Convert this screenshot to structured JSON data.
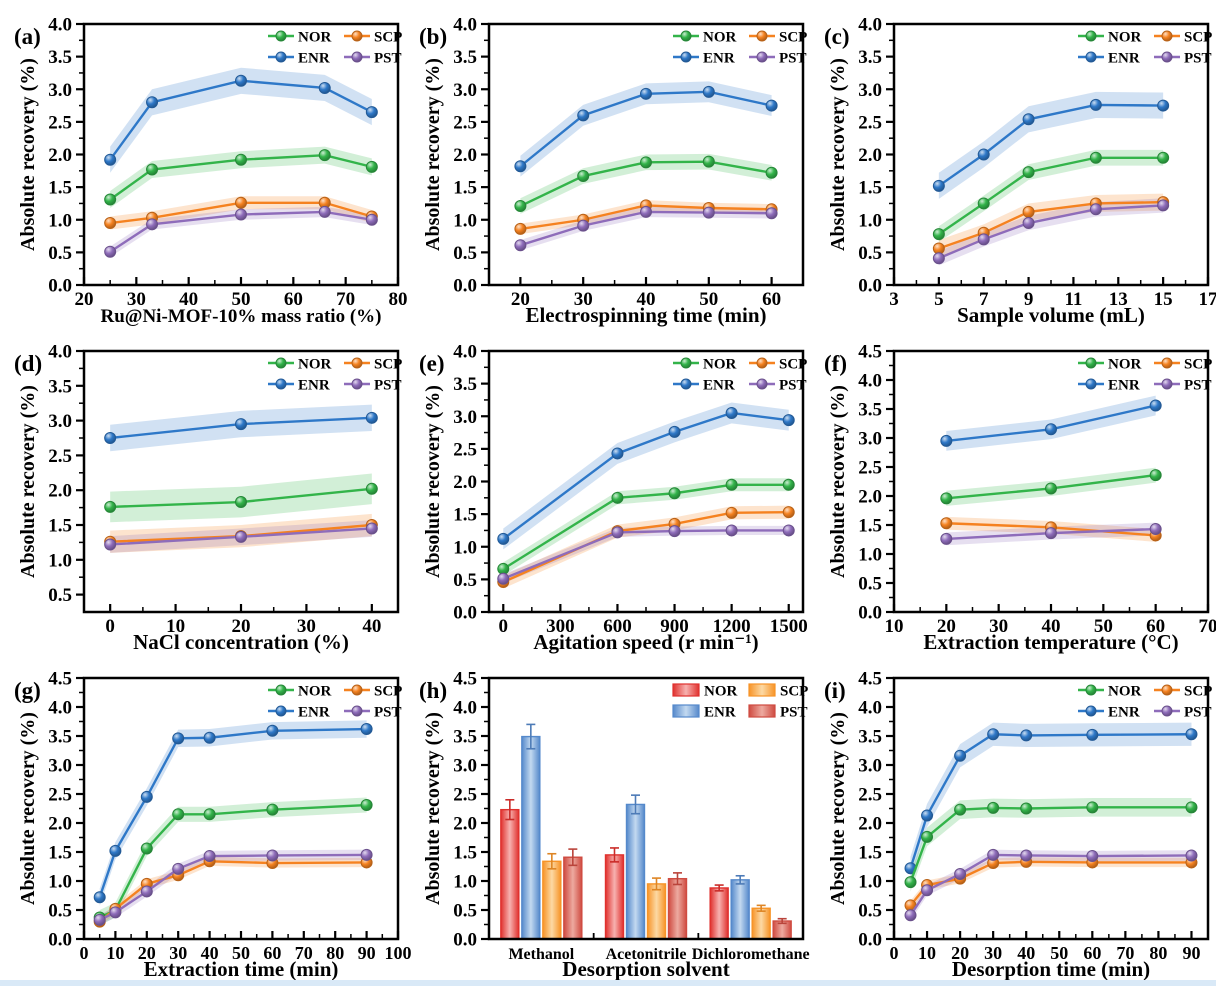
{
  "page": {
    "background": "#ffffff",
    "footer_strip_color": "#d9e9f7"
  },
  "figure": {
    "ylabel": "Absolute recovery (%)",
    "legend_rows": [
      [
        "NOR",
        "SCP"
      ],
      [
        "ENR",
        "PST"
      ]
    ],
    "bar_series_order": [
      "NOR",
      "ENR",
      "SCP",
      "PST"
    ],
    "line_colors": {
      "NOR": "#33b44a",
      "SCP": "#f58220",
      "ENR": "#2e78c8",
      "PST": "#8e6cba"
    },
    "bar_colors": {
      "NOR": {
        "edge": "#e0312e",
        "light": "#f7b2b0"
      },
      "ENR": {
        "edge": "#5589cb",
        "light": "#c3d9f0"
      },
      "SCP": {
        "edge": "#f79428",
        "light": "#fcd9a4"
      },
      "PST": {
        "edge": "#cf4b41",
        "light": "#edaaa0"
      }
    }
  },
  "chart_data": [
    {
      "id": "a",
      "tag": "(a)",
      "type": "line",
      "title": "",
      "xlabel": "Ru@Ni-MOF-10%  mass ratio  (%)",
      "ylabel": "Absolute recovery (%)",
      "xlim": [
        20,
        80
      ],
      "xticks": [
        20,
        30,
        40,
        50,
        60,
        70,
        80
      ],
      "xminors": [
        25,
        35,
        45,
        55,
        65,
        75
      ],
      "ylim": [
        0,
        4
      ],
      "ytick_step": 0.5,
      "xlabel_fs": 19,
      "x": [
        25,
        33,
        50,
        66,
        75
      ],
      "series": [
        {
          "name": "ENR",
          "values": [
            1.92,
            2.8,
            3.13,
            3.02,
            2.65
          ],
          "band": 0.2
        },
        {
          "name": "NOR",
          "values": [
            1.31,
            1.77,
            1.92,
            1.99,
            1.81
          ],
          "band": 0.13
        },
        {
          "name": "SCP",
          "values": [
            0.95,
            1.03,
            1.26,
            1.26,
            1.05
          ],
          "band": 0.1
        },
        {
          "name": "PST",
          "values": [
            0.51,
            0.93,
            1.08,
            1.12,
            1.0
          ],
          "band": 0.08
        }
      ]
    },
    {
      "id": "b",
      "tag": "(b)",
      "type": "line",
      "title": "",
      "xlabel": "Electrospinning time  (min)",
      "ylabel": "Absolute recovery (%)",
      "xlim": [
        15,
        65
      ],
      "xticks": [
        20,
        30,
        40,
        50,
        60
      ],
      "xminors": [
        25,
        35,
        45,
        55
      ],
      "ylim": [
        0,
        4
      ],
      "ytick_step": 0.5,
      "x": [
        20,
        30,
        40,
        50,
        60
      ],
      "series": [
        {
          "name": "ENR",
          "values": [
            1.82,
            2.6,
            2.93,
            2.96,
            2.75
          ],
          "band": 0.16
        },
        {
          "name": "NOR",
          "values": [
            1.21,
            1.67,
            1.88,
            1.89,
            1.72
          ],
          "band": 0.12
        },
        {
          "name": "SCP",
          "values": [
            0.86,
            1.0,
            1.22,
            1.18,
            1.16
          ],
          "band": 0.08
        },
        {
          "name": "PST",
          "values": [
            0.61,
            0.91,
            1.12,
            1.11,
            1.1
          ],
          "band": 0.08
        }
      ]
    },
    {
      "id": "c",
      "tag": "(c)",
      "type": "line",
      "title": "",
      "xlabel": "Sample volume  (mL)",
      "ylabel": "Absolute recovery (%)",
      "xlim": [
        3,
        17
      ],
      "xticks": [
        3,
        5,
        7,
        9,
        11,
        13,
        15,
        17
      ],
      "xminors": [
        4,
        6,
        8,
        10,
        12,
        14,
        16
      ],
      "ylim": [
        0,
        4
      ],
      "ytick_step": 0.5,
      "x": [
        5,
        7,
        9,
        12,
        15
      ],
      "series": [
        {
          "name": "ENR",
          "values": [
            1.52,
            2.0,
            2.54,
            2.76,
            2.75
          ],
          "band": 0.2
        },
        {
          "name": "NOR",
          "values": [
            0.78,
            1.25,
            1.73,
            1.95,
            1.95
          ],
          "band": 0.12
        },
        {
          "name": "SCP",
          "values": [
            0.56,
            0.8,
            1.12,
            1.25,
            1.27
          ],
          "band": 0.13
        },
        {
          "name": "PST",
          "values": [
            0.41,
            0.7,
            0.95,
            1.16,
            1.22
          ],
          "band": 0.11
        }
      ]
    },
    {
      "id": "d",
      "tag": "(d)",
      "type": "line",
      "title": "",
      "xlabel": "NaCl concentration  (%)",
      "ylabel": "Absolute recovery (%)",
      "xlim": [
        -4,
        44
      ],
      "xticks": [
        0,
        10,
        20,
        30,
        40
      ],
      "xminors": [
        5,
        15,
        25,
        35
      ],
      "ylim": [
        0.25,
        4
      ],
      "ytick_step": 0.5,
      "x": [
        0,
        20,
        40
      ],
      "series": [
        {
          "name": "ENR",
          "values": [
            2.75,
            2.95,
            3.04
          ],
          "band": 0.19
        },
        {
          "name": "NOR",
          "values": [
            1.76,
            1.83,
            2.02
          ],
          "band": 0.22
        },
        {
          "name": "SCP",
          "values": [
            1.26,
            1.34,
            1.5
          ],
          "band": 0.16
        },
        {
          "name": "PST",
          "values": [
            1.22,
            1.33,
            1.45
          ],
          "band": 0.12
        }
      ]
    },
    {
      "id": "e",
      "tag": "(e)",
      "type": "line",
      "title": "",
      "xlabel": "Agitation speed  (r min⁻¹)",
      "ylabel": "Absolute recovery (%)",
      "xlim": [
        -75,
        1575
      ],
      "xticks": [
        0,
        300,
        600,
        900,
        1200,
        1500
      ],
      "xminors": [
        150,
        450,
        750,
        1050,
        1350
      ],
      "ylim": [
        0,
        4
      ],
      "ytick_step": 0.5,
      "x": [
        0,
        600,
        900,
        1200,
        1500
      ],
      "series": [
        {
          "name": "ENR",
          "values": [
            1.12,
            2.43,
            2.76,
            3.05,
            2.94
          ],
          "band": 0.16
        },
        {
          "name": "NOR",
          "values": [
            0.66,
            1.75,
            1.82,
            1.95,
            1.95
          ],
          "band": 0.1
        },
        {
          "name": "SCP",
          "values": [
            0.46,
            1.24,
            1.35,
            1.52,
            1.53
          ],
          "band": 0.1
        },
        {
          "name": "PST",
          "values": [
            0.51,
            1.22,
            1.24,
            1.25,
            1.25
          ],
          "band": 0.07
        }
      ]
    },
    {
      "id": "f",
      "tag": "(f)",
      "type": "line",
      "title": "",
      "xlabel": "Extraction temperature  (°C)",
      "ylabel": "Absolute recovery (%)",
      "xlim": [
        10,
        70
      ],
      "xticks": [
        10,
        20,
        30,
        40,
        50,
        60,
        70
      ],
      "xminors": [
        15,
        25,
        35,
        45,
        55,
        65
      ],
      "ylim": [
        0,
        4.5
      ],
      "ytick_step": 0.5,
      "x": [
        20,
        40,
        60
      ],
      "series": [
        {
          "name": "ENR",
          "values": [
            2.95,
            3.15,
            3.56
          ],
          "band": 0.17
        },
        {
          "name": "NOR",
          "values": [
            1.96,
            2.13,
            2.36
          ],
          "band": 0.13
        },
        {
          "name": "SCP",
          "values": [
            1.53,
            1.46,
            1.32
          ],
          "band": 0.11
        },
        {
          "name": "PST",
          "values": [
            1.26,
            1.36,
            1.43
          ],
          "band": 0.11
        }
      ]
    },
    {
      "id": "g",
      "tag": "(g)",
      "type": "line",
      "title": "",
      "xlabel": "Extraction time  (min)",
      "ylabel": "Absolute recovery (%)",
      "xlim": [
        0,
        100
      ],
      "xticks": [
        0,
        10,
        20,
        30,
        40,
        50,
        60,
        70,
        80,
        90,
        100
      ],
      "xminors": [
        5,
        15,
        25,
        35,
        45,
        55,
        65,
        75,
        85,
        95
      ],
      "ylim": [
        0,
        4.5
      ],
      "ytick_step": 0.5,
      "xtick_fs": 18,
      "x": [
        5,
        10,
        20,
        30,
        40,
        60,
        90
      ],
      "series": [
        {
          "name": "ENR",
          "values": [
            0.72,
            1.52,
            2.45,
            3.46,
            3.47,
            3.59,
            3.62
          ],
          "band": 0.15
        },
        {
          "name": "NOR",
          "values": [
            0.37,
            0.5,
            1.56,
            2.15,
            2.15,
            2.23,
            2.31
          ],
          "band": 0.13
        },
        {
          "name": "SCP",
          "values": [
            0.3,
            0.52,
            0.95,
            1.1,
            1.34,
            1.31,
            1.32
          ],
          "band": 0.08
        },
        {
          "name": "PST",
          "values": [
            0.33,
            0.46,
            0.82,
            1.21,
            1.43,
            1.44,
            1.45
          ],
          "band": 0.09
        }
      ]
    },
    {
      "id": "h",
      "tag": "(h)",
      "type": "bar",
      "title": "",
      "xlabel": "Desorption solvent",
      "ylabel": "Absolute recovery (%)",
      "categories": [
        "Methanol",
        "Acetonitrile",
        "Dichloromethane"
      ],
      "ylim": [
        0,
        4.5
      ],
      "ytick_step": 0.5,
      "series": [
        {
          "name": "NOR",
          "values": [
            2.23,
            1.45,
            0.88
          ],
          "errors": [
            0.17,
            0.12,
            0.05
          ]
        },
        {
          "name": "ENR",
          "values": [
            3.49,
            2.32,
            1.02
          ],
          "errors": [
            0.21,
            0.16,
            0.07
          ]
        },
        {
          "name": "SCP",
          "values": [
            1.34,
            0.95,
            0.53
          ],
          "errors": [
            0.13,
            0.1,
            0.05
          ]
        },
        {
          "name": "PST",
          "values": [
            1.41,
            1.04,
            0.31
          ],
          "errors": [
            0.14,
            0.1,
            0.04
          ]
        }
      ]
    },
    {
      "id": "i",
      "tag": "(i)",
      "type": "line",
      "title": "",
      "xlabel": "Desorption time  (min)",
      "ylabel": "Absolute recovery (%)",
      "xlim": [
        0,
        95
      ],
      "xticks": [
        0,
        10,
        20,
        30,
        40,
        50,
        60,
        70,
        80,
        90
      ],
      "xminors": [
        5,
        15,
        25,
        35,
        45,
        55,
        65,
        75,
        85
      ],
      "ylim": [
        0,
        4.5
      ],
      "ytick_step": 0.5,
      "xtick_fs": 18,
      "x": [
        5,
        10,
        20,
        30,
        40,
        60,
        90
      ],
      "series": [
        {
          "name": "ENR",
          "values": [
            1.22,
            2.13,
            3.16,
            3.53,
            3.51,
            3.52,
            3.53
          ],
          "band": 0.2
        },
        {
          "name": "NOR",
          "values": [
            0.98,
            1.76,
            2.23,
            2.26,
            2.25,
            2.27,
            2.27
          ],
          "band": 0.16
        },
        {
          "name": "SCP",
          "values": [
            0.58,
            0.93,
            1.04,
            1.31,
            1.33,
            1.32,
            1.32
          ],
          "band": 0.08
        },
        {
          "name": "PST",
          "values": [
            0.41,
            0.84,
            1.12,
            1.45,
            1.44,
            1.43,
            1.44
          ],
          "band": 0.09
        }
      ]
    }
  ]
}
